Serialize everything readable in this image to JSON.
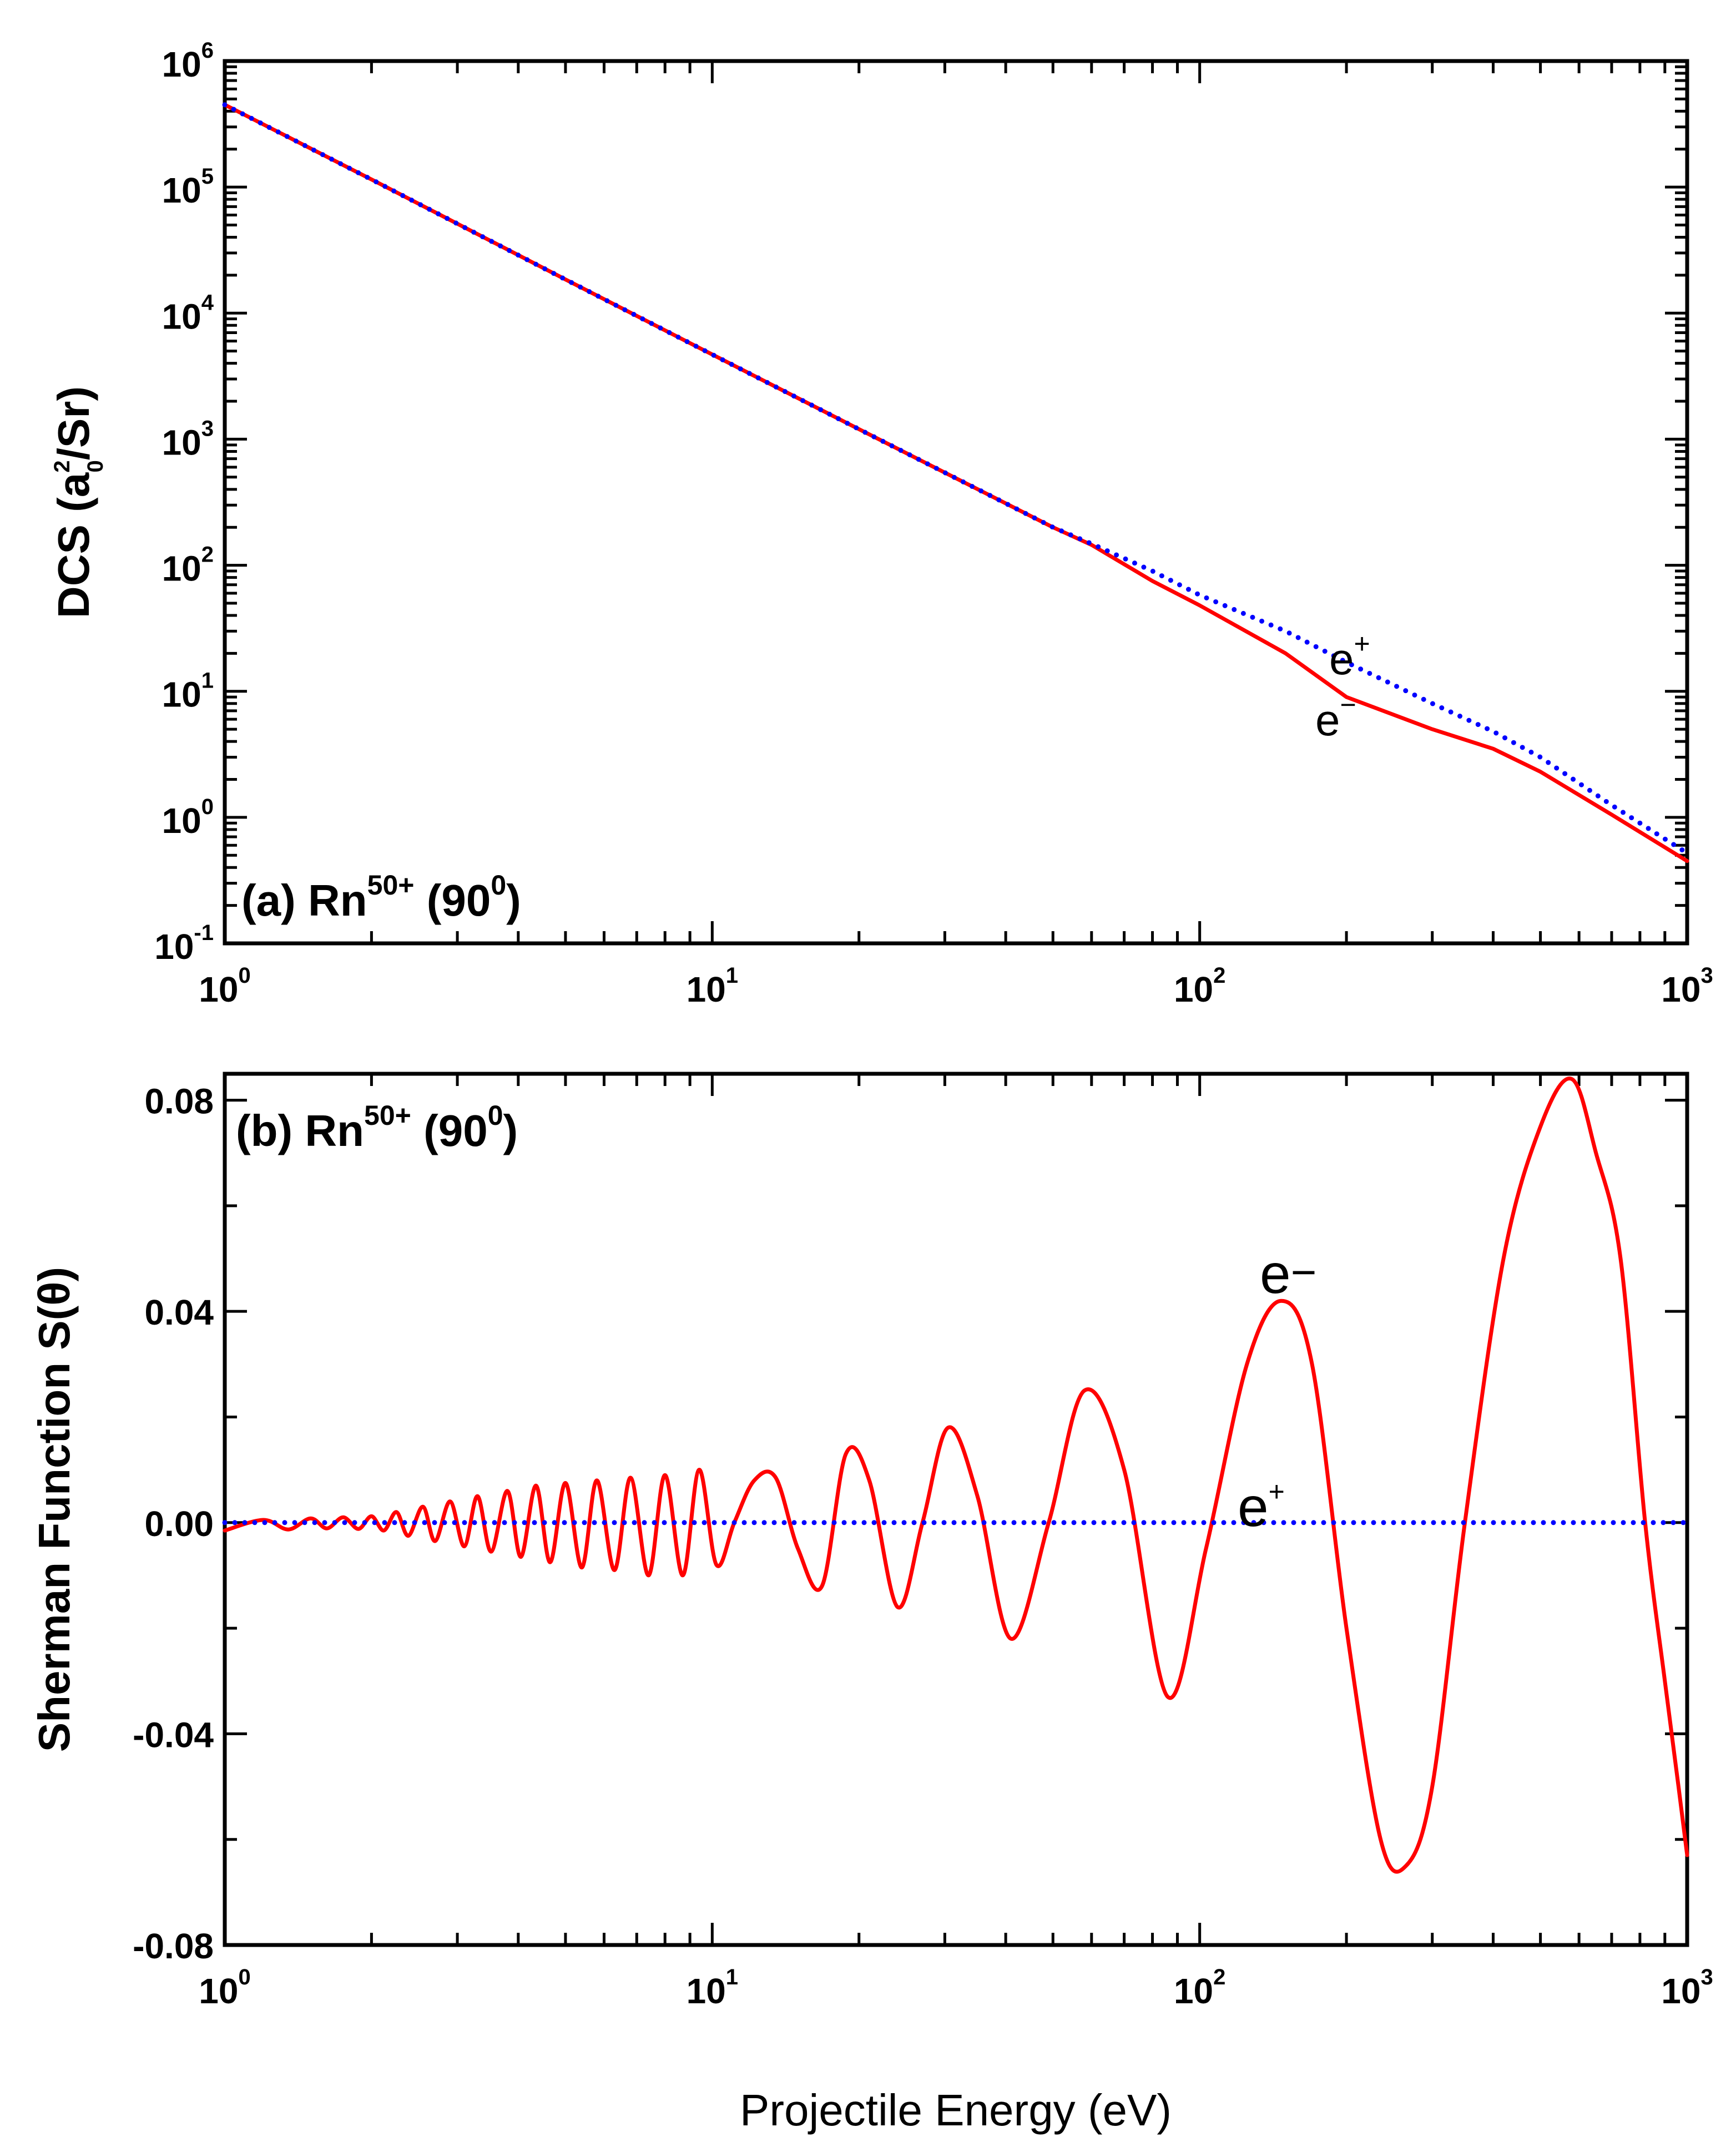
{
  "chart_data": [
    {
      "id": "a",
      "type": "line",
      "panel_label": "(a) Rn",
      "panel_label_sup": "50+",
      "panel_label_angle": "(90",
      "panel_label_angle_sup": "0",
      "panel_label_close": ")",
      "xscale": "log",
      "yscale": "log",
      "xlim": [
        1,
        1000
      ],
      "ylim_exp": [
        -1,
        6
      ],
      "ylabel_main": "DCS (a",
      "ylabel_sup": "2",
      "ylabel_sub": "0",
      "ylabel_end": "/Sr)",
      "x_ticks": [
        {
          "base": "10",
          "exp": "0",
          "value": 1
        },
        {
          "base": "10",
          "exp": "1",
          "value": 10
        },
        {
          "base": "10",
          "exp": "2",
          "value": 100
        },
        {
          "base": "10",
          "exp": "3",
          "value": 1000
        }
      ],
      "y_ticks": [
        {
          "base": "10",
          "exp": "-1",
          "value": 0.1
        },
        {
          "base": "10",
          "exp": "0",
          "value": 1
        },
        {
          "base": "10",
          "exp": "1",
          "value": 10
        },
        {
          "base": "10",
          "exp": "2",
          "value": 100
        },
        {
          "base": "10",
          "exp": "3",
          "value": 1000
        },
        {
          "base": "10",
          "exp": "4",
          "value": 10000
        },
        {
          "base": "10",
          "exp": "5",
          "value": 100000
        },
        {
          "base": "10",
          "exp": "6",
          "value": 1000000
        }
      ],
      "series": [
        {
          "name": "e−",
          "label_base": "e",
          "label_sup": "−",
          "color": "#ff0000",
          "style": "solid",
          "x": [
            1,
            2,
            5,
            10,
            20,
            50,
            60,
            80,
            100,
            150,
            200,
            300,
            400,
            500,
            700,
            1000
          ],
          "y": [
            450000,
            115000,
            18500,
            4700,
            1200,
            200,
            145,
            75,
            48,
            20,
            9,
            5,
            3.5,
            2.3,
            1.05,
            0.45
          ]
        },
        {
          "name": "e+",
          "label_base": "e",
          "label_sup": "+",
          "color": "#0000ff",
          "style": "dotted",
          "x": [
            1,
            2,
            5,
            10,
            20,
            50,
            60,
            80,
            100,
            150,
            200,
            300,
            400,
            500,
            700,
            1000
          ],
          "y": [
            450000,
            115000,
            18500,
            4700,
            1200,
            200,
            148,
            90,
            58,
            30,
            17,
            8,
            4.8,
            3.0,
            1.25,
            0.52
          ]
        }
      ]
    },
    {
      "id": "b",
      "type": "line",
      "panel_label": "(b) Rn",
      "panel_label_sup": "50+",
      "panel_label_angle": "(90",
      "panel_label_angle_sup": "0",
      "panel_label_close": ")",
      "xscale": "log",
      "yscale": "linear",
      "xlim": [
        1,
        1000
      ],
      "ylim": [
        -0.08,
        0.085
      ],
      "ylabel": "Sherman Function S(θ)",
      "xlabel": "Projectile Energy (eV)",
      "x_ticks": [
        {
          "base": "10",
          "exp": "0",
          "value": 1
        },
        {
          "base": "10",
          "exp": "1",
          "value": 10
        },
        {
          "base": "10",
          "exp": "2",
          "value": 100
        },
        {
          "base": "10",
          "exp": "3",
          "value": 1000
        }
      ],
      "y_ticks": [
        {
          "label": "-0.08",
          "value": -0.08
        },
        {
          "label": "-0.04",
          "value": -0.04
        },
        {
          "label": "0.00",
          "value": 0.0
        },
        {
          "label": "0.04",
          "value": 0.04
        },
        {
          "label": "0.08",
          "value": 0.08
        }
      ],
      "series": [
        {
          "name": "e−",
          "label_base": "e",
          "label_sup": "−",
          "color": "#ff0000",
          "style": "solid",
          "x": [
            1.0,
            1.2,
            1.35,
            1.5,
            1.62,
            1.75,
            1.88,
            2.0,
            2.12,
            2.25,
            2.38,
            2.55,
            2.7,
            2.9,
            3.1,
            3.3,
            3.52,
            3.8,
            4.05,
            4.35,
            4.65,
            5.0,
            5.4,
            5.8,
            6.3,
            6.8,
            7.4,
            8.0,
            8.7,
            9.4,
            10.2,
            11.1,
            12.2,
            13.5,
            15.0,
            16.8,
            18.8,
            21.0,
            24.0,
            27.0,
            30.5,
            35.0,
            41.0,
            49.0,
            58.0,
            70.0,
            86.0,
            103.0,
            125.0,
            147.0,
            170.0,
            200.0,
            235.0,
            265.0,
            300.0,
            350.0,
            420.0,
            500.0,
            580.0,
            650.0,
            730.0,
            820.0,
            900.0,
            960.0,
            1000.0
          ],
          "y": [
            -0.0015,
            0.0005,
            -0.0013,
            0.0008,
            -0.0011,
            0.001,
            -0.0012,
            0.0012,
            -0.0015,
            0.002,
            -0.0025,
            0.003,
            -0.0035,
            0.004,
            -0.0045,
            0.005,
            -0.0055,
            0.006,
            -0.0065,
            0.007,
            -0.0075,
            0.0075,
            -0.0085,
            0.008,
            -0.009,
            0.0085,
            -0.01,
            0.009,
            -0.01,
            0.01,
            -0.008,
            0.0,
            0.008,
            0.0085,
            -0.005,
            -0.012,
            0.013,
            0.008,
            -0.016,
            0.0,
            0.018,
            0.005,
            -0.022,
            0.0,
            0.025,
            0.01,
            -0.033,
            -0.005,
            0.03,
            0.042,
            0.03,
            -0.02,
            -0.06,
            -0.065,
            -0.05,
            0.0,
            0.05,
            0.075,
            0.084,
            0.07,
            0.05,
            0.0,
            -0.03,
            -0.05,
            -0.063
          ]
        },
        {
          "name": "e+",
          "label_base": "e",
          "label_sup": "+",
          "color": "#0000ff",
          "style": "dotted",
          "x": [
            1,
            1000
          ],
          "y": [
            0.0,
            0.0
          ]
        }
      ]
    }
  ]
}
